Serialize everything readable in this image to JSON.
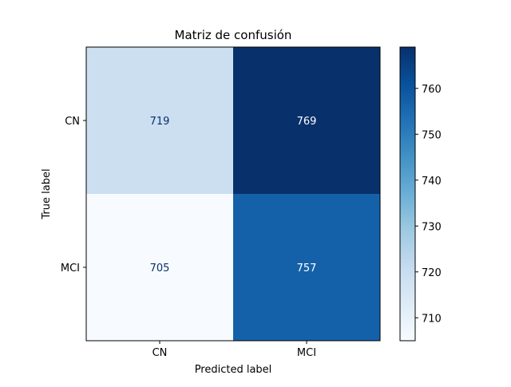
{
  "chart_data": {
    "type": "heatmap",
    "title": "Matriz de confusión",
    "xlabel": "Predicted label",
    "ylabel": "True label",
    "x_categories": [
      "CN",
      "MCI"
    ],
    "y_categories": [
      "CN",
      "MCI"
    ],
    "values": [
      [
        719,
        769
      ],
      [
        705,
        757
      ]
    ],
    "colormap": "Blues",
    "colorbar": {
      "range": [
        705,
        769
      ],
      "ticks": [
        710,
        720,
        730,
        740,
        750,
        760
      ]
    },
    "grid": false
  }
}
